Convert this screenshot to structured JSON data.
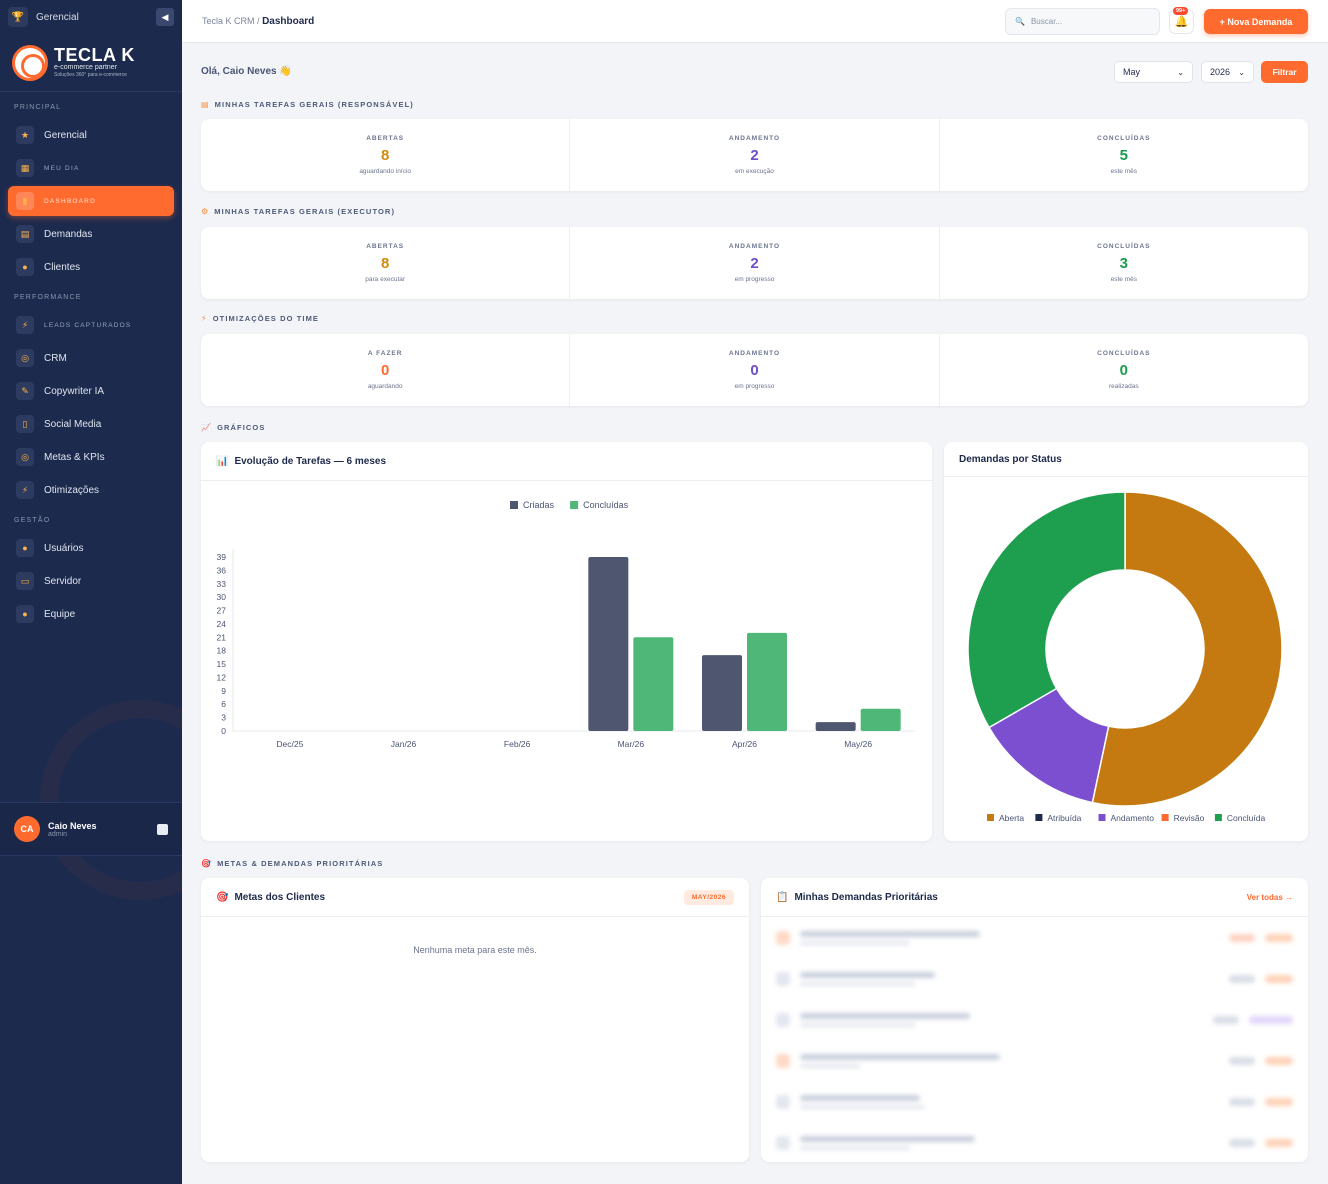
{
  "sidebar": {
    "top_label": "Gerencial",
    "logo": {
      "title": "TECLA K",
      "subtitle": "e-commerce partner",
      "tagline": "Soluções 360° para e-commerce"
    },
    "sections": {
      "principal": "PRINCIPAL",
      "performance": "PERFORMANCE",
      "gestao": "GESTÃO"
    },
    "items": [
      {
        "label": "Gerencial",
        "icon": "trophy-icon"
      },
      {
        "label": "MEU DIA",
        "icon": "calendar-icon"
      },
      {
        "label": "DASHBOARD",
        "icon": "bar-chart-icon"
      },
      {
        "label": "Demandas",
        "icon": "clipboard-icon"
      },
      {
        "label": "Clientes",
        "icon": "users-icon"
      },
      {
        "label": "LEADS CAPTURADOS",
        "icon": "bolt-icon"
      },
      {
        "label": "CRM",
        "icon": "target-icon"
      },
      {
        "label": "Copywriter IA",
        "icon": "pen-icon"
      },
      {
        "label": "Social Media",
        "icon": "phone-icon"
      },
      {
        "label": "Metas & KPIs",
        "icon": "target-icon"
      },
      {
        "label": "Otimizações",
        "icon": "bolt-icon"
      },
      {
        "label": "Usuários",
        "icon": "users-icon"
      },
      {
        "label": "Servidor",
        "icon": "monitor-icon"
      },
      {
        "label": "Equipe",
        "icon": "person-icon"
      }
    ],
    "user": {
      "initials": "CA",
      "name": "Caio Neves",
      "role": "admin"
    }
  },
  "topbar": {
    "breadcrumb_root": "Tecla K CRM",
    "breadcrumb_sep": "/",
    "breadcrumb_current": "Dashboard",
    "search_placeholder": "Buscar...",
    "notif_badge": "99+",
    "new_button": "+ Nova Demanda"
  },
  "filters": {
    "greeting": "Olá, Caio Neves 👋",
    "month": "May",
    "year": "2026",
    "filter_button": "Filtrar"
  },
  "sections": {
    "tarefas_responsavel": "MINHAS TAREFAS GERAIS (RESPONSÁVEL)",
    "tarefas_executor": "MINHAS TAREFAS GERAIS (EXECUTOR)",
    "otimizacoes": "OTIMIZAÇÕES DO TIME",
    "graficos": "GRÁFICOS",
    "metas": "METAS & DEMANDAS PRIORITÁRIAS"
  },
  "stats": {
    "responsavel": [
      {
        "label": "ABERTAS",
        "value": "8",
        "sub": "aguardando início"
      },
      {
        "label": "ANDAMENTO",
        "value": "2",
        "sub": "em execução"
      },
      {
        "label": "CONCLUÍDAS",
        "value": "5",
        "sub": "este mês"
      }
    ],
    "executor": [
      {
        "label": "ABERTAS",
        "value": "8",
        "sub": "para executar"
      },
      {
        "label": "ANDAMENTO",
        "value": "2",
        "sub": "em progresso"
      },
      {
        "label": "CONCLUÍDAS",
        "value": "3",
        "sub": "este mês"
      }
    ],
    "otimizacoes": [
      {
        "label": "A FAZER",
        "value": "0",
        "sub": "aguardando"
      },
      {
        "label": "ANDAMENTO",
        "value": "0",
        "sub": "em progresso"
      },
      {
        "label": "CONCLUÍDAS",
        "value": "0",
        "sub": "realizadas"
      }
    ]
  },
  "panels": {
    "evolucao_title": "Evolução de Tarefas — 6 meses",
    "status_title": "Demandas por Status",
    "metas_title": "Metas dos Clientes",
    "metas_tag": "MAY/2026",
    "metas_empty": "Nenhuma meta para este mês.",
    "prioritarias_title": "Minhas Demandas Prioritárias",
    "ver_todas": "Ver todas →"
  },
  "colors": {
    "accent": "#ff6a2e",
    "criadas": "#4e5670",
    "concluidas": "#4fb878",
    "aberta": "#c47a10",
    "atribuida": "#1e2a4a",
    "andamento": "#7b4fcf",
    "revisao": "#ff6a2e",
    "concluida": "#1e9e4f"
  },
  "chart_data": [
    {
      "type": "bar",
      "categories": [
        "Dec/25",
        "Jan/26",
        "Feb/26",
        "Mar/26",
        "Apr/26",
        "May/26"
      ],
      "series": [
        {
          "name": "Criadas",
          "values": [
            0,
            0,
            0,
            39,
            17,
            2
          ]
        },
        {
          "name": "Concluídas",
          "values": [
            0,
            0,
            0,
            21,
            22,
            5
          ]
        }
      ],
      "yticks": [
        0,
        3,
        6,
        9,
        12,
        15,
        18,
        21,
        24,
        27,
        30,
        33,
        36,
        39
      ],
      "ylim": [
        0,
        39
      ],
      "legend": "top"
    },
    {
      "type": "pie",
      "variant": "donut",
      "labels": [
        "Aberta",
        "Atribuída",
        "Andamento",
        "Revisão",
        "Concluída"
      ],
      "values": [
        8,
        0,
        2,
        0,
        5
      ],
      "legend": "bottom"
    }
  ]
}
